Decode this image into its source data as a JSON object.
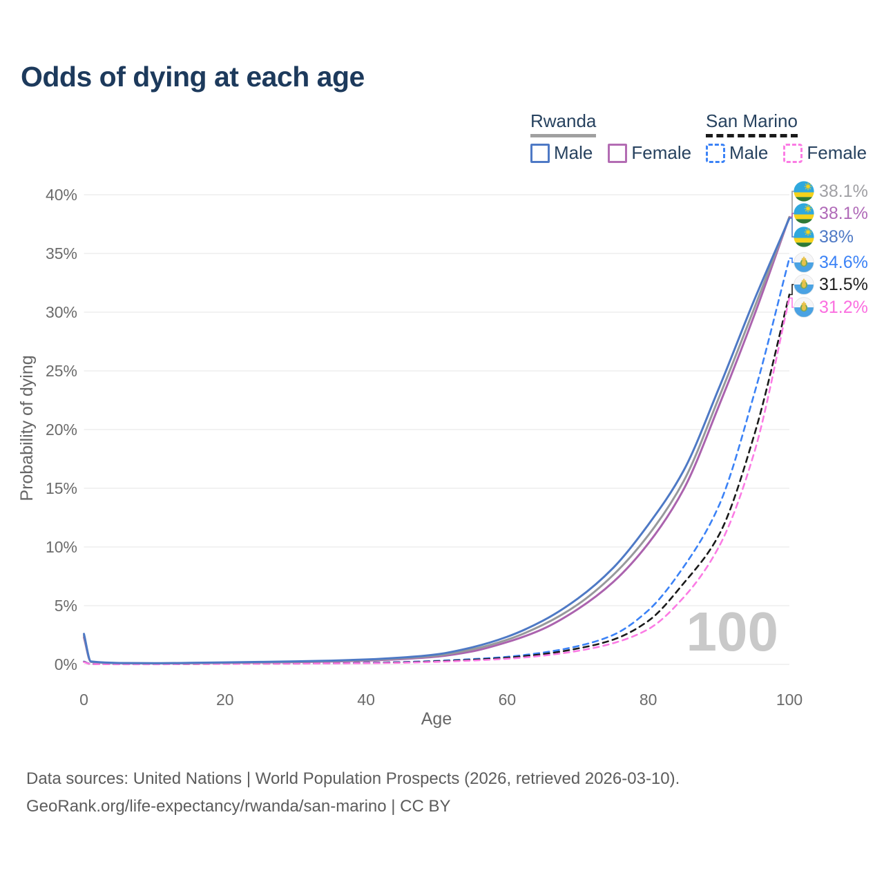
{
  "title": "Odds of dying at each age",
  "watermark": "100",
  "legend": {
    "groups": [
      {
        "label": "Rwanda",
        "underline_style": "solid",
        "underline_color": "#a0a0a0",
        "items": [
          {
            "label": "Male",
            "color": "#4e79c5",
            "dashed": false
          },
          {
            "label": "Female",
            "color": "#b36cb3",
            "dashed": false
          }
        ]
      },
      {
        "label": "San Marino",
        "underline_style": "dashed",
        "underline_color": "#1a1a1a",
        "items": [
          {
            "label": "Male",
            "color": "#3b82f6",
            "dashed": true
          },
          {
            "label": "Female",
            "color": "#fb7be4",
            "dashed": true
          }
        ]
      }
    ]
  },
  "chart_data": {
    "type": "line",
    "title": "Odds of dying at each age",
    "xlabel": "Age",
    "ylabel": "Probability of dying",
    "xlim": [
      0,
      100
    ],
    "ylim": [
      0,
      40
    ],
    "x_ticks": [
      "0",
      "20",
      "40",
      "60",
      "80",
      "100"
    ],
    "x_tick_values": [
      0,
      20,
      40,
      60,
      80,
      100
    ],
    "y_ticks": [
      "0%",
      "5%",
      "10%",
      "15%",
      "20%",
      "25%",
      "30%",
      "35%",
      "40%"
    ],
    "y_tick_values": [
      0,
      5,
      10,
      15,
      20,
      25,
      30,
      35,
      40
    ],
    "grid": true,
    "legend_position": "top-right",
    "x": [
      0,
      1,
      5,
      10,
      15,
      20,
      25,
      30,
      35,
      40,
      45,
      50,
      55,
      60,
      65,
      70,
      75,
      80,
      85,
      90,
      95,
      100
    ],
    "series": [
      {
        "name": "Rwanda Both sexes",
        "country": "Rwanda",
        "sex": "both",
        "color": "#97999b",
        "dashed": false,
        "values": [
          2.45,
          0.23,
          0.11,
          0.09,
          0.11,
          0.15,
          0.18,
          0.22,
          0.28,
          0.37,
          0.51,
          0.75,
          1.27,
          2.1,
          3.35,
          5.1,
          7.6,
          11.0,
          15.6,
          22.7,
          30.3,
          38.1
        ],
        "end_label": "38.1%",
        "end_label_color": "#a0a0a4",
        "flag": "rwanda"
      },
      {
        "name": "Rwanda Female",
        "country": "Rwanda",
        "sex": "female",
        "color": "#ab63ae",
        "dashed": false,
        "values": [
          2.3,
          0.21,
          0.1,
          0.08,
          0.1,
          0.13,
          0.16,
          0.19,
          0.24,
          0.32,
          0.45,
          0.66,
          1.1,
          1.9,
          3.0,
          4.7,
          7.0,
          10.3,
          14.9,
          22.0,
          29.7,
          38.1
        ],
        "end_label": "38.1%",
        "end_label_color": "#b06ab8",
        "flag": "rwanda"
      },
      {
        "name": "Rwanda Male",
        "country": "Rwanda",
        "sex": "male",
        "color": "#4e79c5",
        "dashed": false,
        "values": [
          2.6,
          0.25,
          0.12,
          0.1,
          0.13,
          0.17,
          0.21,
          0.26,
          0.32,
          0.42,
          0.58,
          0.85,
          1.45,
          2.35,
          3.7,
          5.6,
          8.2,
          11.9,
          16.5,
          23.5,
          31.0,
          38.0
        ],
        "end_label": "38%",
        "end_label_color": "#4e79c5",
        "flag": "rwanda"
      },
      {
        "name": "San Marino Male",
        "country": "San Marino",
        "sex": "male",
        "color": "#3b82f6",
        "dashed": true,
        "values": [
          0.25,
          0.04,
          0.02,
          0.02,
          0.04,
          0.06,
          0.07,
          0.08,
          0.1,
          0.14,
          0.2,
          0.3,
          0.45,
          0.65,
          1.0,
          1.55,
          2.5,
          4.6,
          8.3,
          13.5,
          23.0,
          34.6
        ],
        "end_label": "34.6%",
        "end_label_color": "#3b82f6",
        "flag": "san-marino"
      },
      {
        "name": "San Marino Both sexes",
        "country": "San Marino",
        "sex": "both",
        "color": "#1a1a1a",
        "dashed": true,
        "values": [
          0.22,
          0.03,
          0.02,
          0.02,
          0.03,
          0.05,
          0.06,
          0.07,
          0.09,
          0.12,
          0.17,
          0.26,
          0.39,
          0.57,
          0.87,
          1.35,
          2.1,
          3.7,
          6.9,
          11.0,
          19.5,
          31.5
        ],
        "end_label": "31.5%",
        "end_label_color": "#1f1f1f",
        "flag": "san-marino"
      },
      {
        "name": "San Marino Female",
        "country": "San Marino",
        "sex": "female",
        "color": "#fb7be4",
        "dashed": true,
        "values": [
          0.2,
          0.03,
          0.01,
          0.01,
          0.03,
          0.04,
          0.05,
          0.06,
          0.08,
          0.1,
          0.14,
          0.22,
          0.33,
          0.48,
          0.74,
          1.15,
          1.8,
          3.0,
          5.7,
          10.0,
          18.0,
          31.2
        ],
        "end_label": "31.2%",
        "end_label_color": "#fb6ee0",
        "flag": "san-marino"
      }
    ],
    "annotations": {
      "age_counter": "100"
    }
  },
  "sources": {
    "line1": "Data sources: United Nations | World Population Prospects (2026, retrieved 2026-03-10).",
    "line2": "GeoRank.org/life-expectancy/rwanda/san-marino | CC BY"
  },
  "colors": {
    "title": "#1d3a5c",
    "tick_text": "#6b6b6b",
    "axis_title": "#666666",
    "gridline": "#ebebeb",
    "watermark": "#c9c9c9",
    "source_text": "#5c5c5c",
    "legend_text": "#27425f"
  }
}
